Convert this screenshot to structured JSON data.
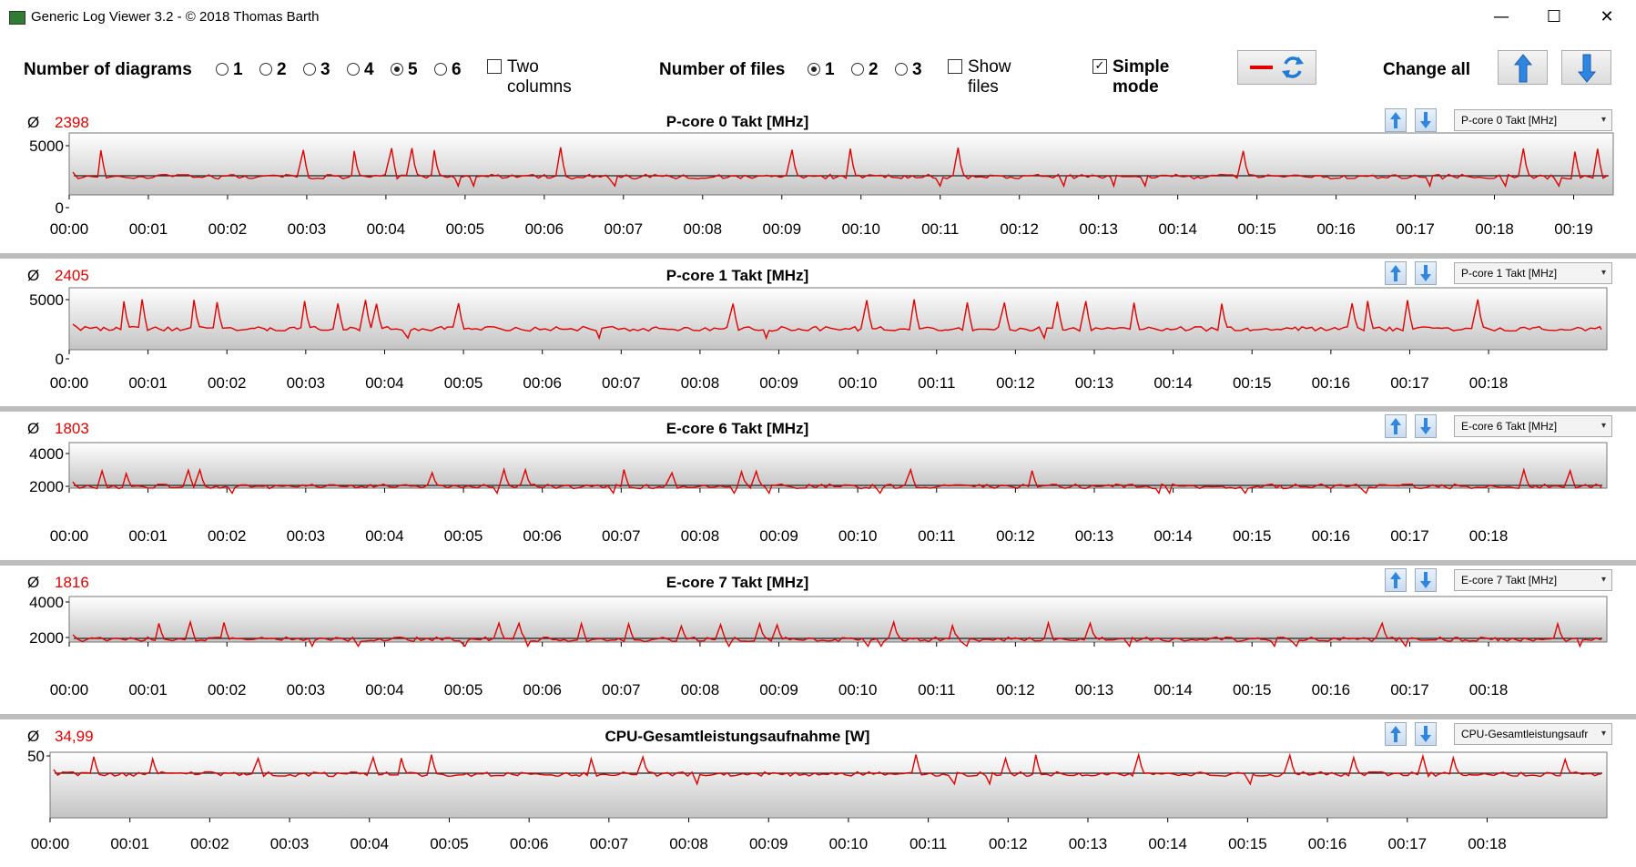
{
  "window": {
    "title": "Generic Log Viewer 3.2 - © 2018 Thomas Barth",
    "minimize": "—",
    "maximize": "☐",
    "close": "✕"
  },
  "toolbar": {
    "num_diagrams_label": "Number of diagrams",
    "diagram_options": [
      "1",
      "2",
      "3",
      "4",
      "5",
      "6"
    ],
    "diagram_selected": "5",
    "two_columns_label": "Two columns",
    "two_columns_checked": false,
    "num_files_label": "Number of files",
    "file_options": [
      "1",
      "2",
      "3"
    ],
    "file_selected": "1",
    "show_files_label": "Show files",
    "show_files_checked": false,
    "simple_mode_label": "Simple mode",
    "simple_mode_checked": true,
    "change_all_label": "Change all",
    "line_color": "#e00000",
    "accent_color": "#1e7bd6"
  },
  "panels": [
    {
      "avg_symbol": "Ø",
      "avg_value": "2398",
      "title": "P-core 0 Takt [MHz]",
      "dropdown": "P-core 0 Takt [MHz]",
      "yticks": [
        "5000",
        "0"
      ],
      "xticks": [
        "00:00",
        "00:01",
        "00:02",
        "00:03",
        "00:04",
        "00:05",
        "00:06",
        "00:07",
        "00:08",
        "00:09",
        "00:10",
        "00:11",
        "00:12",
        "00:13",
        "00:14",
        "00:15",
        "00:16",
        "00:17",
        "00:18",
        "00:19"
      ]
    },
    {
      "avg_symbol": "Ø",
      "avg_value": "2405",
      "title": "P-core 1 Takt [MHz]",
      "dropdown": "P-core 1 Takt [MHz]",
      "yticks": [
        "5000",
        "0"
      ],
      "xticks": [
        "00:00",
        "00:01",
        "00:02",
        "00:03",
        "00:04",
        "00:05",
        "00:06",
        "00:07",
        "00:08",
        "00:09",
        "00:10",
        "00:11",
        "00:12",
        "00:13",
        "00:14",
        "00:15",
        "00:16",
        "00:17",
        "00:18"
      ]
    },
    {
      "avg_symbol": "Ø",
      "avg_value": "1803",
      "title": "E-core 6 Takt [MHz]",
      "dropdown": "E-core 6 Takt [MHz]",
      "yticks": [
        "4000",
        "2000"
      ],
      "xticks": [
        "00:00",
        "00:01",
        "00:02",
        "00:03",
        "00:04",
        "00:05",
        "00:06",
        "00:07",
        "00:08",
        "00:09",
        "00:10",
        "00:11",
        "00:12",
        "00:13",
        "00:14",
        "00:15",
        "00:16",
        "00:17",
        "00:18"
      ]
    },
    {
      "avg_symbol": "Ø",
      "avg_value": "1816",
      "title": "E-core 7 Takt [MHz]",
      "dropdown": "E-core 7 Takt [MHz]",
      "yticks": [
        "4000",
        "2000"
      ],
      "xticks": [
        "00:00",
        "00:01",
        "00:02",
        "00:03",
        "00:04",
        "00:05",
        "00:06",
        "00:07",
        "00:08",
        "00:09",
        "00:10",
        "00:11",
        "00:12",
        "00:13",
        "00:14",
        "00:15",
        "00:16",
        "00:17",
        "00:18"
      ]
    },
    {
      "avg_symbol": "Ø",
      "avg_value": "34,99",
      "title": "CPU-Gesamtleistungsaufnahme [W]",
      "dropdown": "CPU-Gesamtleistungsaufr",
      "yticks": [
        "50"
      ],
      "xticks": [
        "00:00",
        "00:01",
        "00:02",
        "00:03",
        "00:04",
        "00:05",
        "00:06",
        "00:07",
        "00:08",
        "00:09",
        "00:10",
        "00:11",
        "00:12",
        "00:13",
        "00:14",
        "00:15",
        "00:16",
        "00:17",
        "00:18"
      ]
    }
  ]
}
